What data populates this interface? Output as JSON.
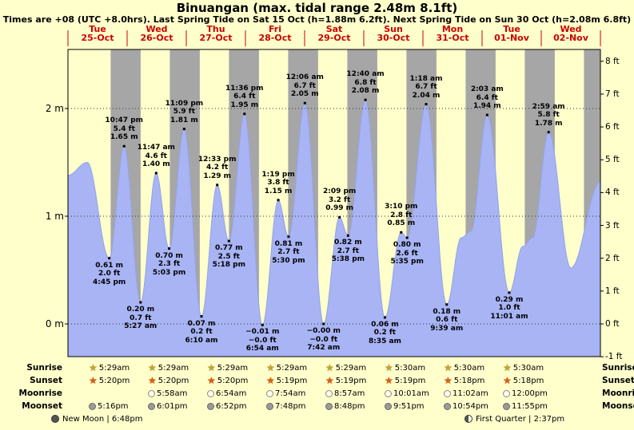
{
  "title": "Binuangan (max. tidal range 2.48m 8.1ft)",
  "subtitle": "Times are +08 (UTC +8.0hrs). Last Spring Tide on Sat 15 Oct (h=1.88m 6.2ft). Next Spring Tide on Sun 30 Oct (h=2.08m 6.8ft)",
  "chart_data": {
    "type": "area",
    "title": "Binuangan tide curve",
    "unit_left": "m",
    "unit_right": "ft",
    "ylim_m": [
      -0.305,
      2.55
    ],
    "x_axis_days": [
      {
        "weekday": "Tue",
        "date": "25-Oct"
      },
      {
        "weekday": "Wed",
        "date": "26-Oct"
      },
      {
        "weekday": "Thu",
        "date": "27-Oct"
      },
      {
        "weekday": "Fri",
        "date": "28-Oct"
      },
      {
        "weekday": "Sat",
        "date": "29-Oct"
      },
      {
        "weekday": "Sun",
        "date": "30-Oct"
      },
      {
        "weekday": "Mon",
        "date": "31-Oct"
      },
      {
        "weekday": "Tue",
        "date": "01-Nov"
      },
      {
        "weekday": "Wed",
        "date": "02-Nov"
      }
    ],
    "y_axis_left": [
      {
        "label": "2 m",
        "m": 2
      },
      {
        "label": "1 m",
        "m": 1
      },
      {
        "label": "0 m",
        "m": 0
      }
    ],
    "y_axis_right": [
      {
        "label": "8 ft",
        "ft": 8
      },
      {
        "label": "7 ft",
        "ft": 7
      },
      {
        "label": "6 ft",
        "ft": 6
      },
      {
        "label": "5 ft",
        "ft": 5
      },
      {
        "label": "4 ft",
        "ft": 4
      },
      {
        "label": "3 ft",
        "ft": 3
      },
      {
        "label": "2 ft",
        "ft": 2
      },
      {
        "label": "1 ft",
        "ft": 1
      },
      {
        "label": "0 ft",
        "ft": 0
      },
      {
        "label": "-1 ft",
        "ft": -1
      }
    ],
    "night": {
      "sunset_h": 17.32,
      "sunrise_h": 5.48
    },
    "colors": {
      "day_bg": "#ffffcc",
      "night_band": "#a6a6a6",
      "water": "#a8b4f4",
      "water_edge": "#93a3ea",
      "date_red": "#cc0000",
      "frame": "#000000",
      "grid": "#333333"
    },
    "tide_events": [
      {
        "day": 0,
        "type": "low",
        "time": "4:45 pm",
        "hour": 16.75,
        "height_m": 0.61,
        "height_ft": "2.0 ft",
        "label_lines": [
          "0.61 m",
          "2.0 ft",
          "4:45 pm"
        ]
      },
      {
        "day": 0,
        "type": "high",
        "time": "10:47 pm",
        "hour": 22.783,
        "height_m": 1.65,
        "height_ft": "5.4 ft",
        "label_lines": [
          "10:47 pm",
          "5.4 ft",
          "1.65 m"
        ]
      },
      {
        "day": 1,
        "type": "low",
        "time": "5:27 am",
        "hour": 29.45,
        "height_m": 0.2,
        "height_ft": "0.7 ft",
        "label_lines": [
          "0.20 m",
          "0.7 ft",
          "5:27 am"
        ]
      },
      {
        "day": 1,
        "type": "high",
        "time": "11:47 am",
        "hour": 35.783,
        "height_m": 1.4,
        "height_ft": "4.6 ft",
        "label_lines": [
          "11:47 am",
          "4.6 ft",
          "1.40 m"
        ]
      },
      {
        "day": 1,
        "type": "low",
        "time": "5:03 pm",
        "hour": 41.05,
        "height_m": 0.7,
        "height_ft": "2.3 ft",
        "label_lines": [
          "0.70 m",
          "2.3 ft",
          "5:03 pm"
        ]
      },
      {
        "day": 1,
        "type": "high",
        "time": "11:09 pm",
        "hour": 47.15,
        "height_m": 1.81,
        "height_ft": "5.9 ft",
        "label_lines": [
          "11:09 pm",
          "5.9 ft",
          "1.81 m"
        ]
      },
      {
        "day": 2,
        "type": "low",
        "time": "6:10 am",
        "hour": 54.167,
        "height_m": 0.07,
        "height_ft": "0.2 ft",
        "label_lines": [
          "0.07 m",
          "0.2 ft",
          "6:10 am"
        ]
      },
      {
        "day": 2,
        "type": "high",
        "time": "12:33 pm",
        "hour": 60.55,
        "height_m": 1.29,
        "height_ft": "4.2 ft",
        "label_lines": [
          "12:33 pm",
          "4.2 ft",
          "1.29 m"
        ]
      },
      {
        "day": 2,
        "type": "low",
        "time": "5:18 pm",
        "hour": 65.3,
        "height_m": 0.77,
        "height_ft": "2.5 ft",
        "label_lines": [
          "0.77 m",
          "2.5 ft",
          "5:18 pm"
        ]
      },
      {
        "day": 2,
        "type": "high",
        "time": "11:36 pm",
        "hour": 71.6,
        "height_m": 1.95,
        "height_ft": "6.4 ft",
        "label_lines": [
          "11:36 pm",
          "6.4 ft",
          "1.95 m"
        ]
      },
      {
        "day": 3,
        "type": "low",
        "time": "6:54 am",
        "hour": 78.9,
        "height_m": -0.01,
        "height_ft": "−0.0 ft",
        "label_lines": [
          "−0.01 m",
          "−0.0 ft",
          "6:54 am"
        ]
      },
      {
        "day": 3,
        "type": "high",
        "time": "1:19 pm",
        "hour": 85.317,
        "height_m": 1.15,
        "height_ft": "3.8 ft",
        "label_lines": [
          "1:19 pm",
          "3.8 ft",
          "1.15 m"
        ]
      },
      {
        "day": 3,
        "type": "low",
        "time": "5:30 pm",
        "hour": 89.5,
        "height_m": 0.81,
        "height_ft": "2.7 ft",
        "label_lines": [
          "0.81 m",
          "2.7 ft",
          "5:30 pm"
        ]
      },
      {
        "day": 4,
        "type": "high",
        "time": "12:06 am",
        "hour": 96.1,
        "height_m": 2.05,
        "height_ft": "6.7 ft",
        "label_lines": [
          "12:06 am",
          "6.7 ft",
          "2.05 m"
        ]
      },
      {
        "day": 4,
        "type": "low",
        "time": "7:42 am",
        "hour": 103.7,
        "height_m": 0.0,
        "height_ft": "−0.0 ft",
        "label_lines": [
          "−0.00 m",
          "−0.0 ft",
          "7:42 am"
        ]
      },
      {
        "day": 4,
        "type": "high",
        "time": "2:09 pm",
        "hour": 110.15,
        "height_m": 0.99,
        "height_ft": "3.2 ft",
        "label_lines": [
          "2:09 pm",
          "3.2 ft",
          "0.99 m"
        ]
      },
      {
        "day": 4,
        "type": "low",
        "time": "5:38 pm",
        "hour": 113.633,
        "height_m": 0.82,
        "height_ft": "2.7 ft",
        "label_lines": [
          "0.82 m",
          "2.7 ft",
          "5:38 pm"
        ]
      },
      {
        "day": 5,
        "type": "high",
        "time": "12:40 am",
        "hour": 120.667,
        "height_m": 2.08,
        "height_ft": "6.8 ft",
        "label_lines": [
          "12:40 am",
          "6.8 ft",
          "2.08 m"
        ]
      },
      {
        "day": 5,
        "type": "low",
        "time": "8:35 am",
        "hour": 128.583,
        "height_m": 0.06,
        "height_ft": "0.2 ft",
        "label_lines": [
          "0.06 m",
          "0.2 ft",
          "8:35 am"
        ]
      },
      {
        "day": 5,
        "type": "high",
        "time": "3:10 pm",
        "hour": 135.167,
        "height_m": 0.85,
        "height_ft": "2.8 ft",
        "label_lines": [
          "3:10 pm",
          "2.8 ft",
          "0.85 m"
        ]
      },
      {
        "day": 5,
        "type": "low",
        "time": "5:35 pm",
        "hour": 137.583,
        "height_m": 0.8,
        "height_ft": "2.6 ft",
        "label_lines": [
          "0.80 m",
          "2.6 ft",
          "5:35 pm"
        ]
      },
      {
        "day": 6,
        "type": "high",
        "time": "1:18 am",
        "hour": 145.3,
        "height_m": 2.04,
        "height_ft": "6.7 ft",
        "label_lines": [
          "1:18 am",
          "6.7 ft",
          "2.04 m"
        ]
      },
      {
        "day": 6,
        "type": "low",
        "time": "9:39 am",
        "hour": 153.65,
        "height_m": 0.18,
        "height_ft": "0.6 ft",
        "label_lines": [
          "0.18 m",
          "0.6 ft",
          "9:39 am"
        ]
      },
      {
        "day": 7,
        "type": "high",
        "time": "2:03 am",
        "hour": 170.05,
        "height_m": 1.94,
        "height_ft": "6.4 ft",
        "label_lines": [
          "2:03 am",
          "6.4 ft",
          "1.94 m"
        ]
      },
      {
        "day": 7,
        "type": "low",
        "time": "11:01 am",
        "hour": 179.017,
        "height_m": 0.29,
        "height_ft": "1.0 ft",
        "label_lines": [
          "0.29 m",
          "1.0 ft",
          "11:01 am"
        ]
      },
      {
        "day": 8,
        "type": "high",
        "time": "2:59 am",
        "hour": 194.983,
        "height_m": 1.78,
        "height_ft": "5.8 ft",
        "label_lines": [
          "2:59 am",
          "5.8 ft",
          "1.78 m"
        ]
      }
    ],
    "shape_points": [
      {
        "hour": 0,
        "height_m": 1.38
      },
      {
        "hour": 7.8,
        "height_m": 1.5
      },
      {
        "hour": 159.5,
        "height_m": 0.8
      },
      {
        "hour": 163.5,
        "height_m": 0.86
      },
      {
        "hour": 184.5,
        "height_m": 0.72
      },
      {
        "hour": 188.5,
        "height_m": 0.8
      },
      {
        "hour": 204,
        "height_m": 0.52
      },
      {
        "hour": 216,
        "height_m": 1.32
      }
    ]
  },
  "astro": {
    "row_labels": {
      "sunrise": "Sunrise",
      "sunset": "Sunset",
      "moonrise": "Moonrise",
      "moonset": "Moonset"
    },
    "icons": {
      "sunrise": "sunrise-star-icon",
      "sunset": "sunset-star-icon",
      "moonrise": "moonrise-circle-icon",
      "moonset": "moonset-circle-icon",
      "new_moon": "new-moon-icon",
      "first_quarter": "first-quarter-icon"
    },
    "sunrise": {
      "start_day": 0,
      "times": [
        "5:29am",
        "5:29am",
        "5:29am",
        "5:29am",
        "5:29am",
        "5:30am",
        "5:30am",
        "5:30am"
      ]
    },
    "sunset": {
      "start_day": 0,
      "times": [
        "5:20pm",
        "5:20pm",
        "5:20pm",
        "5:19pm",
        "5:19pm",
        "5:19pm",
        "5:18pm",
        "5:18pm"
      ]
    },
    "moonrise": {
      "start_day": 1,
      "times": [
        "5:58am",
        "6:54am",
        "7:54am",
        "8:57am",
        "10:01am",
        "11:02am",
        "12:00pm"
      ]
    },
    "moonset": {
      "start_day": 0,
      "times": [
        "5:16pm",
        "6:01pm",
        "6:52pm",
        "7:48pm",
        "8:48pm",
        "9:51pm",
        "10:54pm",
        "11:55pm"
      ]
    },
    "phases": [
      {
        "name": "New Moon",
        "time": "6:48pm",
        "icon": "new-moon"
      },
      {
        "name": "First Quarter",
        "time": "2:37pm",
        "icon": "first-quarter"
      }
    ]
  }
}
